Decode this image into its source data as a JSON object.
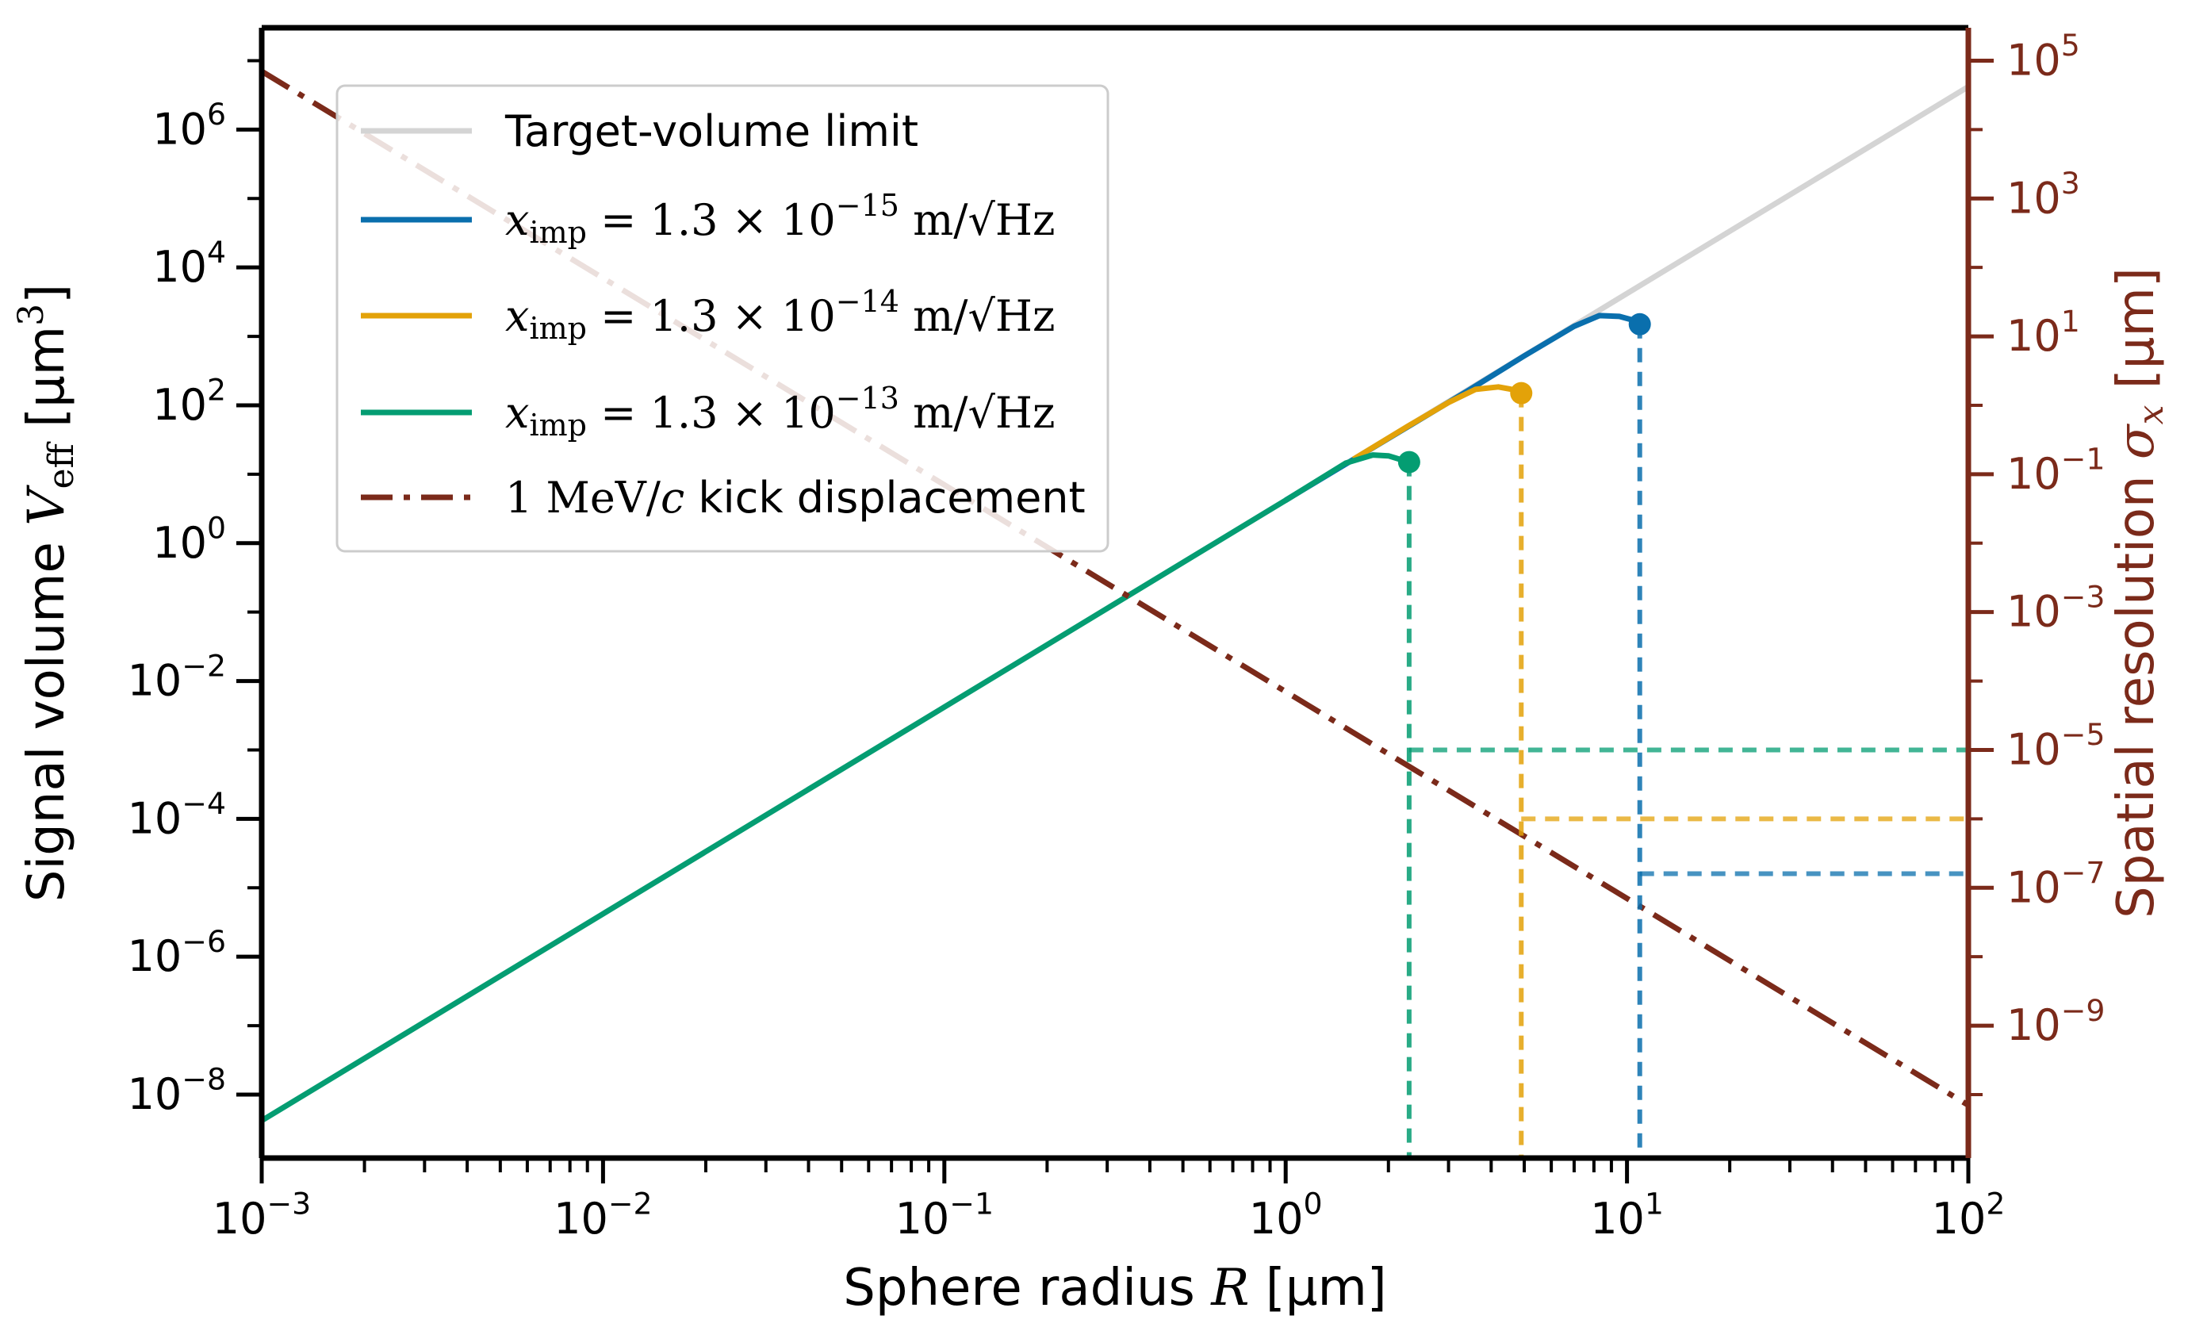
{
  "chart_data": {
    "type": "line",
    "x_axis": {
      "label_prefix": "Sphere radius ",
      "label_symbol": "R",
      "label_unit": " [µm]",
      "scale": "log",
      "range": [
        0.001,
        100
      ],
      "tick_labels": [
        {
          "value": 0.001,
          "base": "10",
          "exp": "−3"
        },
        {
          "value": 0.01,
          "base": "10",
          "exp": "−2"
        },
        {
          "value": 0.1,
          "base": "10",
          "exp": "−1"
        },
        {
          "value": 1,
          "base": "10",
          "exp": "0"
        },
        {
          "value": 10,
          "base": "10",
          "exp": "1"
        },
        {
          "value": 100,
          "base": "10",
          "exp": "2"
        }
      ]
    },
    "y_left": {
      "label_prefix": "Signal volume ",
      "label_symbol": "V",
      "label_sub": "eff",
      "label_unit_pre": " [µm",
      "label_unit_exp": "3",
      "label_unit_post": "]",
      "scale": "log",
      "range": [
        1.2e-09,
        30000000.0
      ],
      "color": "#000000",
      "tick_labels": [
        {
          "value": 1e-08,
          "base": "10",
          "exp": "−8"
        },
        {
          "value": 1e-06,
          "base": "10",
          "exp": "−6"
        },
        {
          "value": 0.0001,
          "base": "10",
          "exp": "−4"
        },
        {
          "value": 0.01,
          "base": "10",
          "exp": "−2"
        },
        {
          "value": 1,
          "base": "10",
          "exp": "0"
        },
        {
          "value": 100.0,
          "base": "10",
          "exp": "2"
        },
        {
          "value": 10000.0,
          "base": "10",
          "exp": "4"
        },
        {
          "value": 1000000.0,
          "base": "10",
          "exp": "6"
        }
      ]
    },
    "y_right": {
      "label_prefix": "Spatial resolution ",
      "label_symbol": "σ",
      "label_sub": "x",
      "label_unit": " [µm]",
      "scale": "log",
      "range": [
        1.2e-11,
        300000.0
      ],
      "color": "#7b2a1a",
      "tick_labels": [
        {
          "value": 1e-09,
          "base": "10",
          "exp": "−9"
        },
        {
          "value": 1e-07,
          "base": "10",
          "exp": "−7"
        },
        {
          "value": 1e-05,
          "base": "10",
          "exp": "−5"
        },
        {
          "value": 0.001,
          "base": "10",
          "exp": "−3"
        },
        {
          "value": 0.1,
          "base": "10",
          "exp": "−1"
        },
        {
          "value": 10,
          "base": "10",
          "exp": "1"
        },
        {
          "value": 1000.0,
          "base": "10",
          "exp": "3"
        },
        {
          "value": 100000.0,
          "base": "10",
          "exp": "5"
        }
      ]
    },
    "grid": false,
    "legend_position": "top-left",
    "series": [
      {
        "name": "Target-volume limit",
        "axis": "left",
        "color": "#d4d4d4",
        "style": "solid",
        "x": [
          1,
          100
        ],
        "y": [
          4.19,
          4190000
        ]
      },
      {
        "name_math_var": "x",
        "name_math_sub": "imp",
        "name_math_value": " = 1.3 × 10",
        "name_math_exp": "−15",
        "name_math_unit": " m/√Hz",
        "axis": "left",
        "color": "#0a6fad",
        "style": "solid",
        "x": [
          1,
          3.4,
          5,
          7,
          8.3,
          9.5,
          10.5,
          10.9
        ],
        "y": [
          4.2,
          160,
          520,
          1400,
          2000,
          1950,
          1700,
          1500
        ]
      },
      {
        "name_math_var": "x",
        "name_math_sub": "imp",
        "name_math_value": " = 1.3 × 10",
        "name_math_exp": "−14",
        "name_math_unit": " m/√Hz",
        "axis": "left",
        "color": "#e3a209",
        "style": "solid",
        "x": [
          1.58,
          2.3,
          3.0,
          3.6,
          4.2,
          4.6,
          4.9
        ],
        "y": [
          16.5,
          51,
          110,
          170,
          185,
          170,
          150
        ]
      },
      {
        "name_math_var": "x",
        "name_math_sub": "imp",
        "name_math_value": " = 1.3 × 10",
        "name_math_exp": "−13",
        "name_math_unit": " m/√Hz",
        "axis": "left",
        "color": "#049d72",
        "style": "solid",
        "x": [
          0.001,
          0.01,
          0.1,
          1,
          1.5,
          1.8,
          2.0,
          2.2,
          2.3
        ],
        "y": [
          4.19e-09,
          4.19e-06,
          0.00419,
          4.19,
          14.5,
          19,
          18.5,
          16,
          15
        ]
      },
      {
        "name_math_value": "1 MeV/",
        "name_math_var": "c",
        "name_suffix": " kick displacement",
        "axis": "right",
        "color": "#7b2a1a",
        "style": "dashdot",
        "x": [
          0.001,
          100
        ],
        "y": [
          70000,
          7e-11
        ]
      }
    ],
    "markers": [
      {
        "series_color": "#0a6fad",
        "x": 10.9,
        "y": 1500,
        "sigma": 1.6e-07
      },
      {
        "series_color": "#e3a209",
        "x": 4.9,
        "y": 150,
        "sigma": 1e-06
      },
      {
        "series_color": "#049d72",
        "x": 2.3,
        "y": 15,
        "sigma": 1e-05
      }
    ]
  }
}
